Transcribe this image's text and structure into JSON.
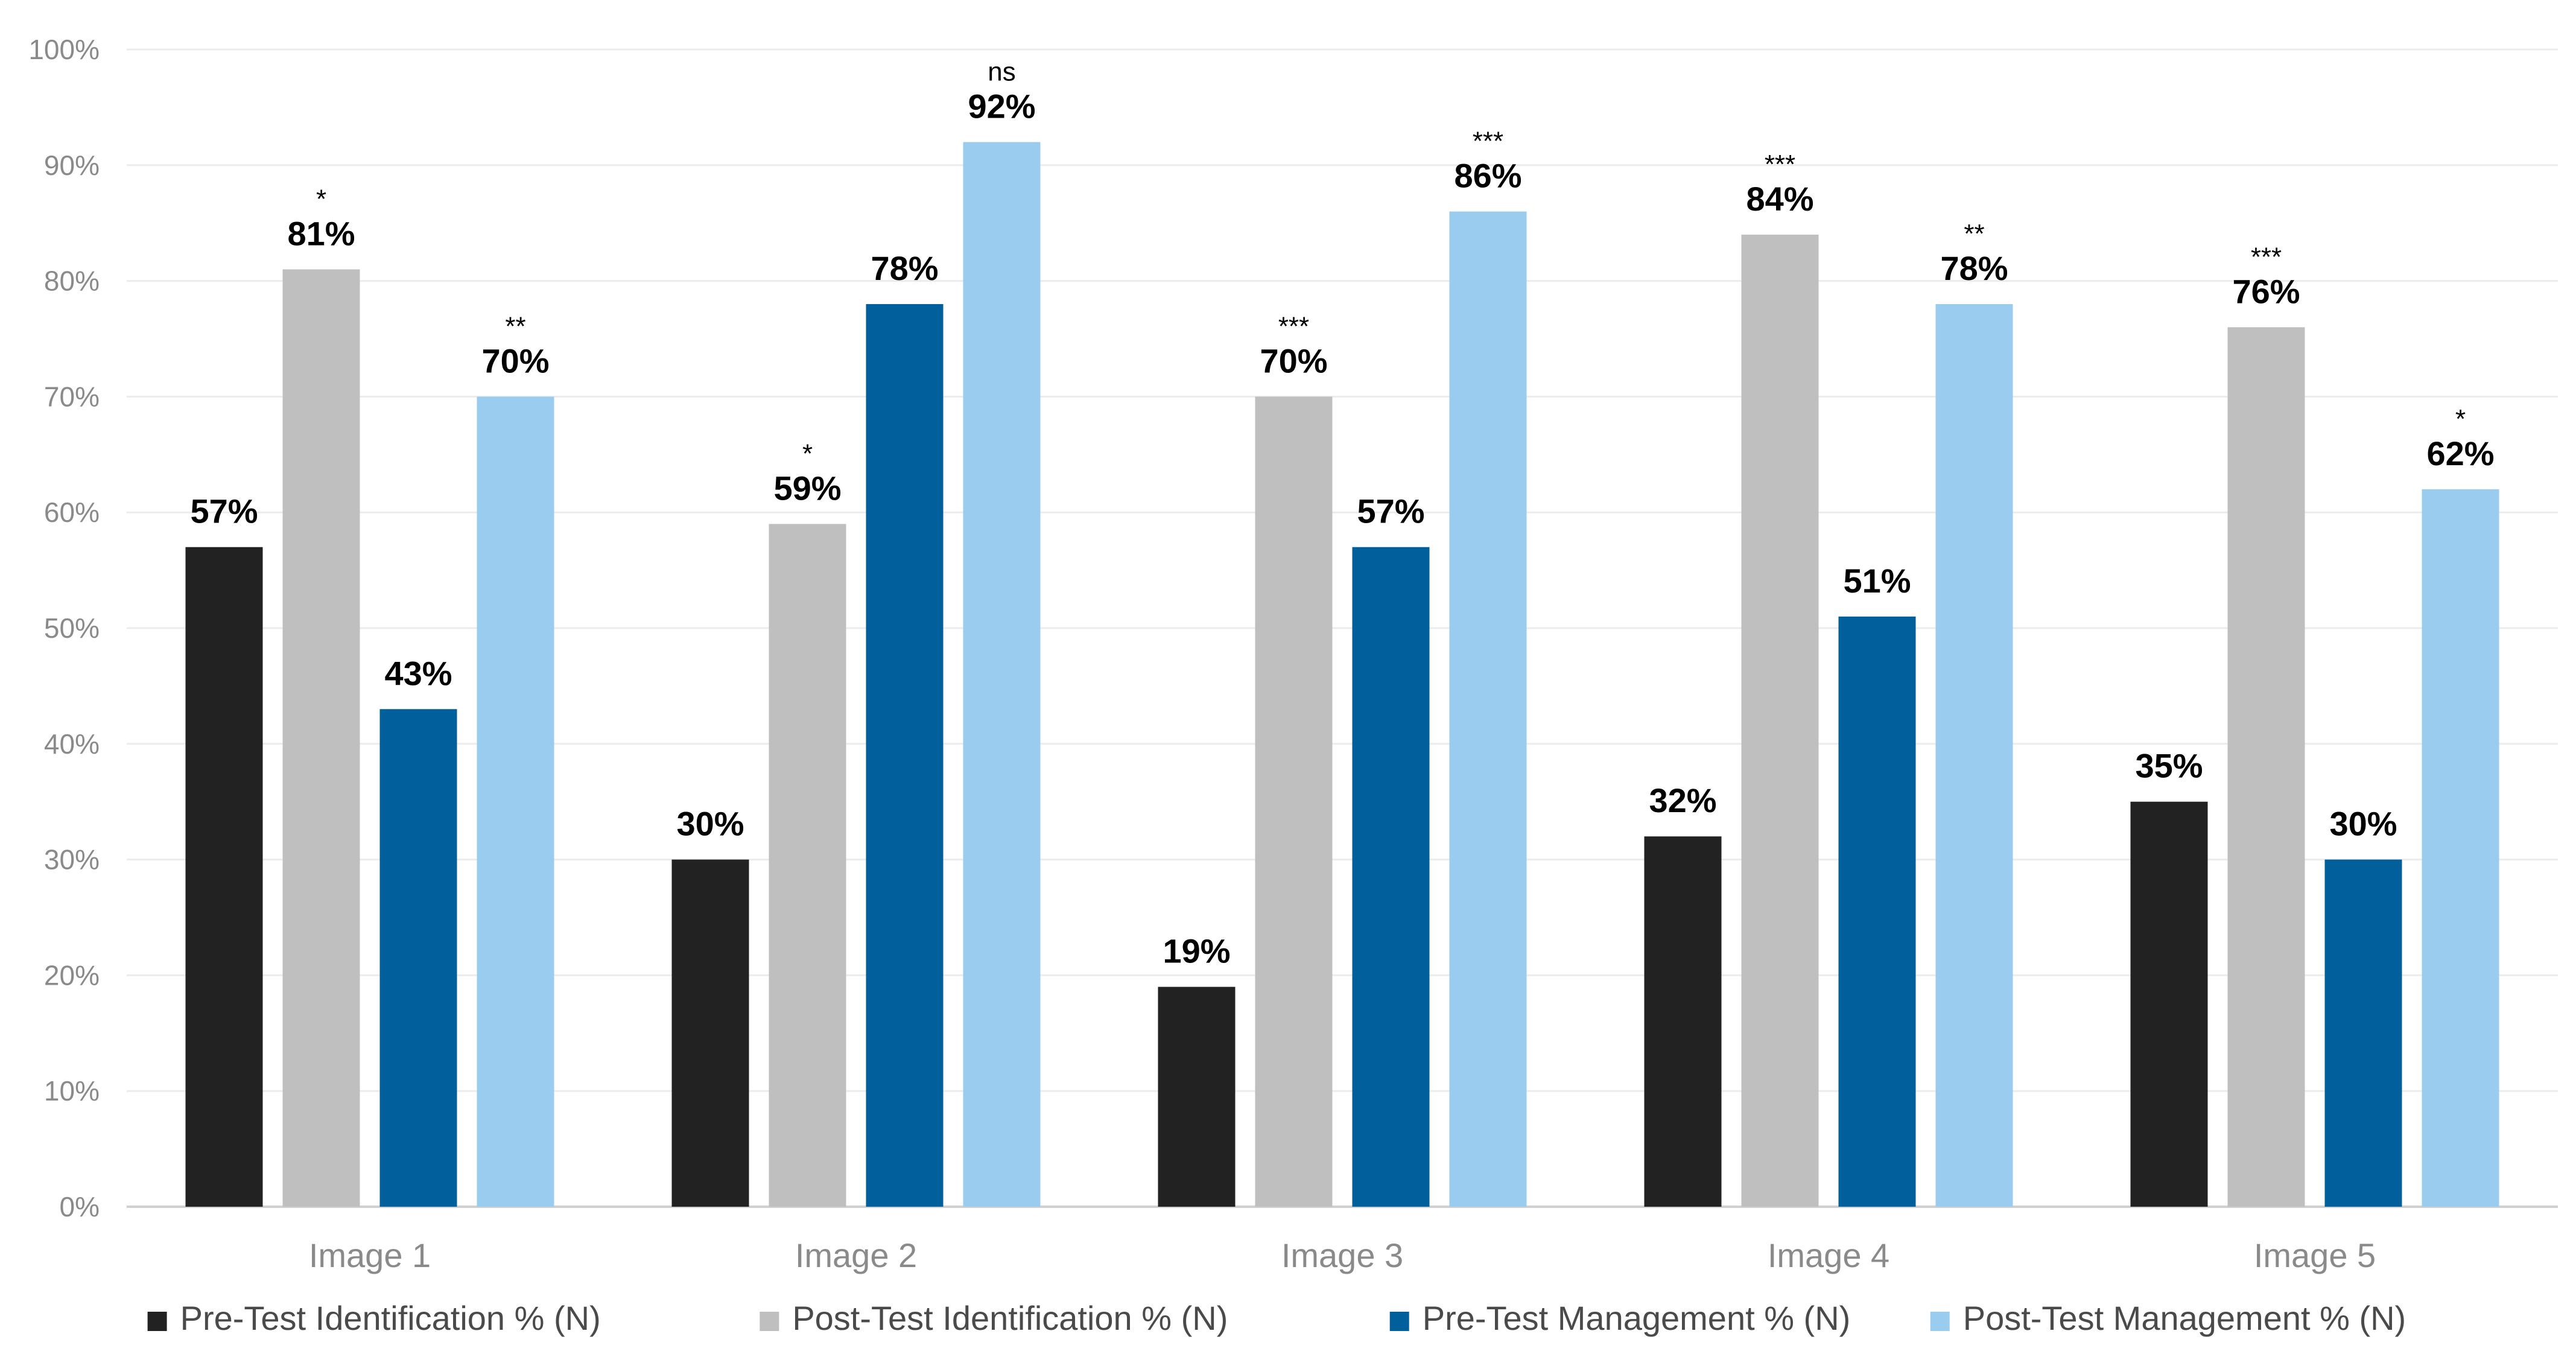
{
  "chart_data": {
    "type": "bar",
    "title": "",
    "xlabel": "",
    "ylabel": "",
    "ylim": [
      0,
      100
    ],
    "yticks": [
      0,
      10,
      20,
      30,
      40,
      50,
      60,
      70,
      80,
      90,
      100
    ],
    "ytick_labels": [
      "0%",
      "10%",
      "20%",
      "30%",
      "40%",
      "50%",
      "60%",
      "70%",
      "80%",
      "90%",
      "100%"
    ],
    "grid": true,
    "legend_position": "bottom",
    "categories": [
      "Image 1",
      "Image 2",
      "Image 3",
      "Image 4",
      "Image 5"
    ],
    "series": [
      {
        "name": "Pre-Test Identification % (N)",
        "color": "#222222",
        "values": [
          57,
          30,
          19,
          32,
          35
        ],
        "labels": [
          "57%",
          "30%",
          "19%",
          "32%",
          "35%"
        ],
        "significance": [
          "",
          "",
          "",
          "",
          ""
        ]
      },
      {
        "name": "Post-Test Identification % (N)",
        "color": "#bfbfbf",
        "values": [
          81,
          59,
          70,
          84,
          76
        ],
        "labels": [
          "81%",
          "59%",
          "70%",
          "84%",
          "76%"
        ],
        "significance": [
          "*",
          "*",
          "***",
          "***",
          "***"
        ]
      },
      {
        "name": "Pre-Test Management % (N)",
        "color": "#01609c",
        "values": [
          43,
          78,
          57,
          51,
          30
        ],
        "labels": [
          "43%",
          "78%",
          "57%",
          "51%",
          "30%"
        ],
        "significance": [
          "",
          "",
          "",
          "",
          ""
        ]
      },
      {
        "name": "Post-Test Management % (N)",
        "color": "#99ccee",
        "values": [
          70,
          92,
          86,
          78,
          62
        ],
        "labels": [
          "70%",
          "92%",
          "86%",
          "78%",
          "62%"
        ],
        "significance": [
          "**",
          "ns",
          "***",
          "**",
          "*"
        ]
      }
    ]
  }
}
